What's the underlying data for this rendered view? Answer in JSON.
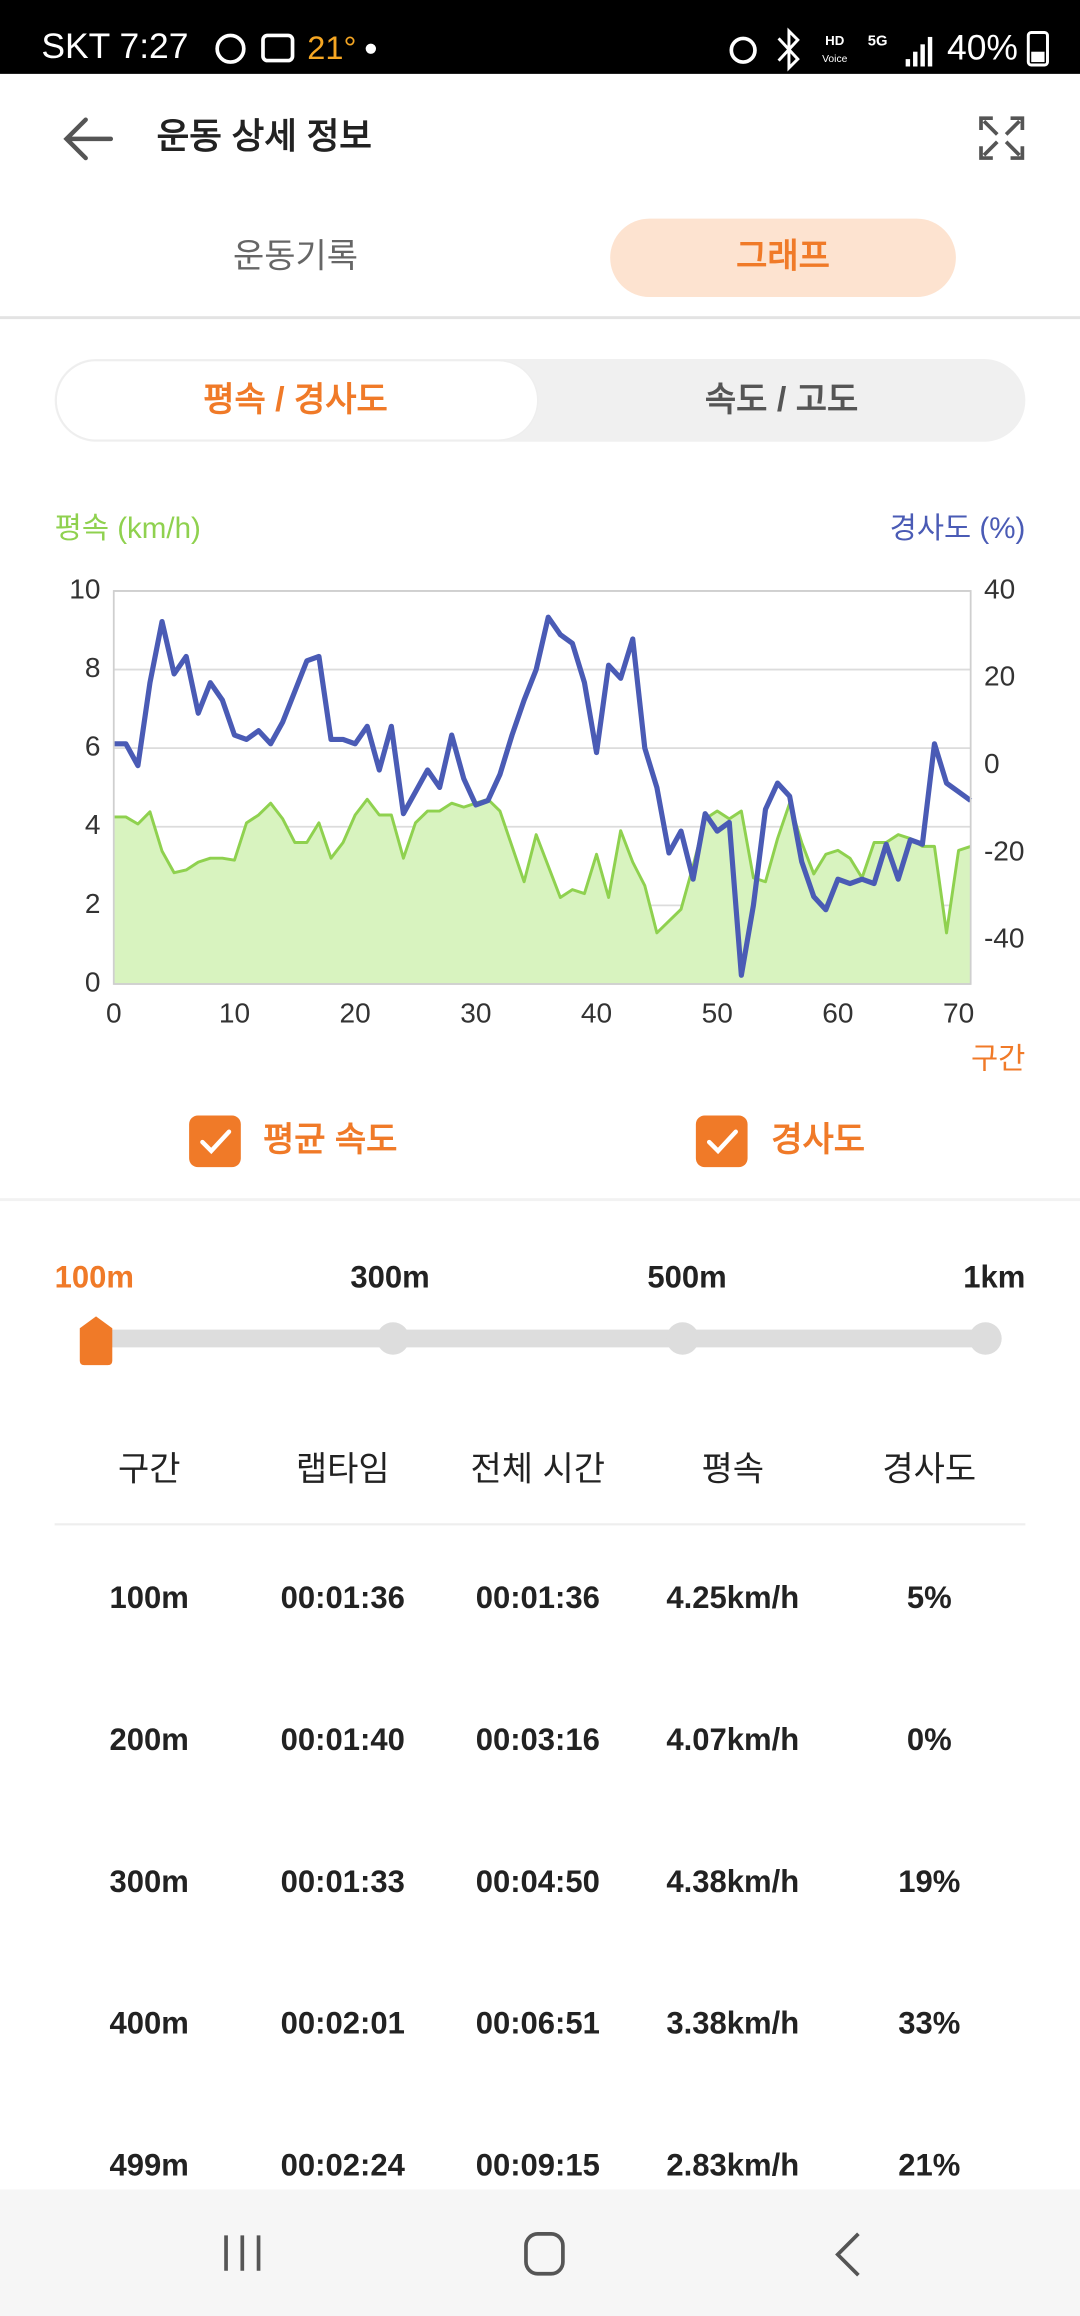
{
  "status_bar": {
    "carrier_time": "SKT 7:27",
    "temperature": "21°",
    "hd": "HD",
    "voice": "Voice",
    "network": "5G",
    "battery": "40%"
  },
  "header": {
    "title": "운동 상세 정보"
  },
  "tabs": [
    "운동기록",
    "그래프"
  ],
  "chart_tabs": [
    "평속 / 경사도",
    "속도 / 고도"
  ],
  "chart_data": {
    "type": "line",
    "y_label": "평속 (km/h)",
    "y2_label": "경사도 (%)",
    "x_label": "구간",
    "x": [
      0,
      1,
      2,
      3,
      4,
      5,
      6,
      7,
      8,
      9,
      10,
      11,
      12,
      13,
      14,
      15,
      16,
      17,
      18,
      19,
      20,
      21,
      22,
      23,
      24,
      25,
      26,
      27,
      28,
      29,
      30,
      31,
      32,
      33,
      34,
      35,
      36,
      37,
      38,
      39,
      40,
      41,
      42,
      43,
      44,
      45,
      46,
      47,
      48,
      49,
      50,
      51,
      52,
      53,
      54,
      55,
      56,
      57,
      58,
      59,
      60,
      61,
      62,
      63,
      64,
      65,
      66,
      67,
      68,
      69,
      70,
      71
    ],
    "xlim": [
      0,
      71
    ],
    "xticks": [
      0,
      10,
      20,
      30,
      40,
      50,
      60,
      70
    ],
    "ylim": [
      0,
      10
    ],
    "yticks": [
      0,
      2,
      4,
      6,
      8,
      10
    ],
    "y2lim": [
      -50,
      40
    ],
    "y2ticks": [
      -40,
      -20,
      0,
      20,
      40
    ],
    "grid": true,
    "series": [
      {
        "name": "평균 속도",
        "color": "#8fd14f",
        "fill": "#d8f3bf",
        "values": [
          4.25,
          4.25,
          4.07,
          4.38,
          3.38,
          2.83,
          2.9,
          3.1,
          3.2,
          3.2,
          3.15,
          4.1,
          4.3,
          4.6,
          4.2,
          3.6,
          3.6,
          4.1,
          3.2,
          3.6,
          4.3,
          4.7,
          4.3,
          4.3,
          3.2,
          4.1,
          4.4,
          4.4,
          4.6,
          4.5,
          4.6,
          4.7,
          4.4,
          3.5,
          2.6,
          3.8,
          3.0,
          2.2,
          2.4,
          2.3,
          3.3,
          2.2,
          3.9,
          3.1,
          2.5,
          1.3,
          1.6,
          1.9,
          3.0,
          4.2,
          4.4,
          4.2,
          4.4,
          2.7,
          2.6,
          3.7,
          4.6,
          3.6,
          2.8,
          3.3,
          3.4,
          3.2,
          2.7,
          3.6,
          3.6,
          3.8,
          3.7,
          3.5,
          3.5,
          1.3,
          3.4,
          3.5
        ]
      },
      {
        "name": "경사도",
        "color": "#4a5bb5",
        "axis": "y2",
        "values": [
          5,
          5,
          0,
          19,
          33,
          21,
          25,
          12,
          19,
          15,
          7,
          6,
          8,
          5,
          10,
          17,
          24,
          25,
          6,
          6,
          5,
          9,
          -1,
          9,
          -11,
          -6,
          -1,
          -5,
          7,
          -3,
          -9,
          -8,
          -2,
          7,
          15,
          22,
          34,
          30,
          28,
          19,
          3,
          23,
          20,
          29,
          4,
          -5,
          -20,
          -15,
          -26,
          -11,
          -15,
          -13,
          -48,
          -32,
          -10,
          -4,
          -7,
          -22,
          -30,
          -33,
          -26,
          -27,
          -26,
          -27,
          -18,
          -26,
          -17,
          -18,
          5,
          -4,
          -6,
          -8
        ]
      }
    ]
  },
  "interval_options": [
    "100m",
    "300m",
    "500m",
    "1km"
  ],
  "table": {
    "columns": [
      "구간",
      "랩타임",
      "전체 시간",
      "평속",
      "경사도"
    ],
    "rows": [
      [
        "100m",
        "00:01:36",
        "00:01:36",
        "4.25km/h",
        "5%"
      ],
      [
        "200m",
        "00:01:40",
        "00:03:16",
        "4.07km/h",
        "0%"
      ],
      [
        "300m",
        "00:01:33",
        "00:04:50",
        "4.38km/h",
        "19%"
      ],
      [
        "400m",
        "00:02:01",
        "00:06:51",
        "3.38km/h",
        "33%"
      ],
      [
        "499m",
        "00:02:24",
        "00:09:15",
        "2.83km/h",
        "21%"
      ]
    ]
  }
}
